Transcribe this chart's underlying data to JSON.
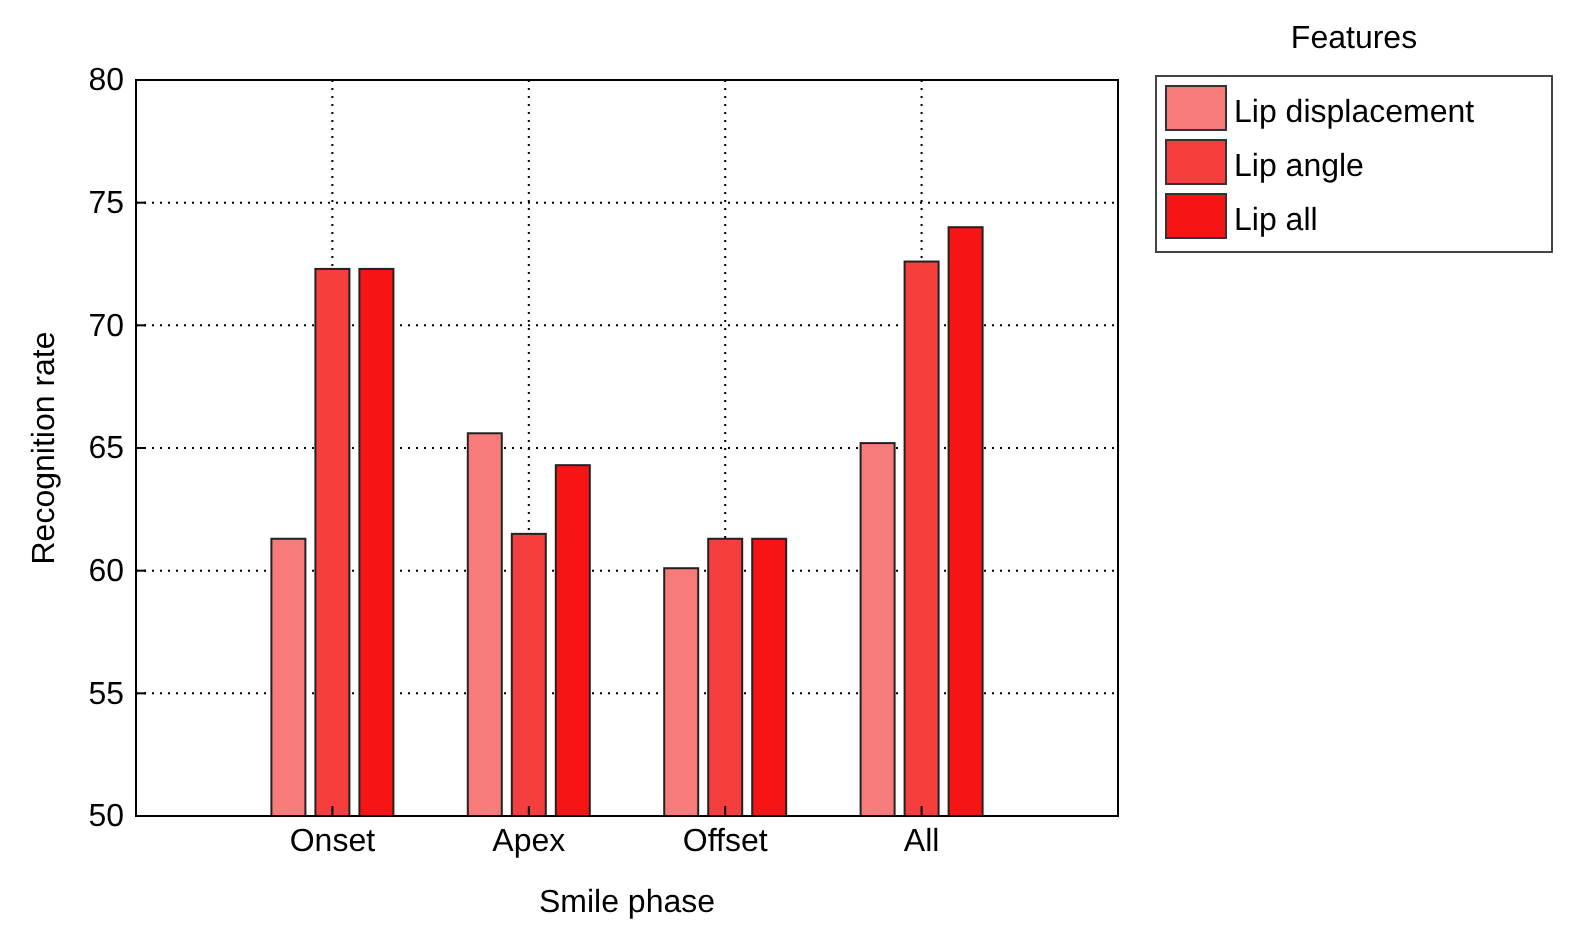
{
  "chart_data": {
    "type": "bar",
    "xlabel": "Smile phase",
    "ylabel": "Recognition rate",
    "legend_title": "Features",
    "categories": [
      "Onset",
      "Apex",
      "Offset",
      "All"
    ],
    "series": [
      {
        "name": "Lip displacement",
        "color": "#f77b7b",
        "values": [
          61.3,
          65.6,
          60.1,
          65.2
        ]
      },
      {
        "name": "Lip angle",
        "color": "#f73e3e",
        "values": [
          72.3,
          61.5,
          61.3,
          72.6
        ]
      },
      {
        "name": "Lip all",
        "color": "#f71414",
        "values": [
          72.3,
          64.3,
          61.3,
          74.0
        ]
      }
    ],
    "ylim": [
      50,
      80
    ],
    "yticks": [
      50,
      55,
      60,
      65,
      70,
      75,
      80
    ],
    "grid": true,
    "legend": "top right"
  }
}
